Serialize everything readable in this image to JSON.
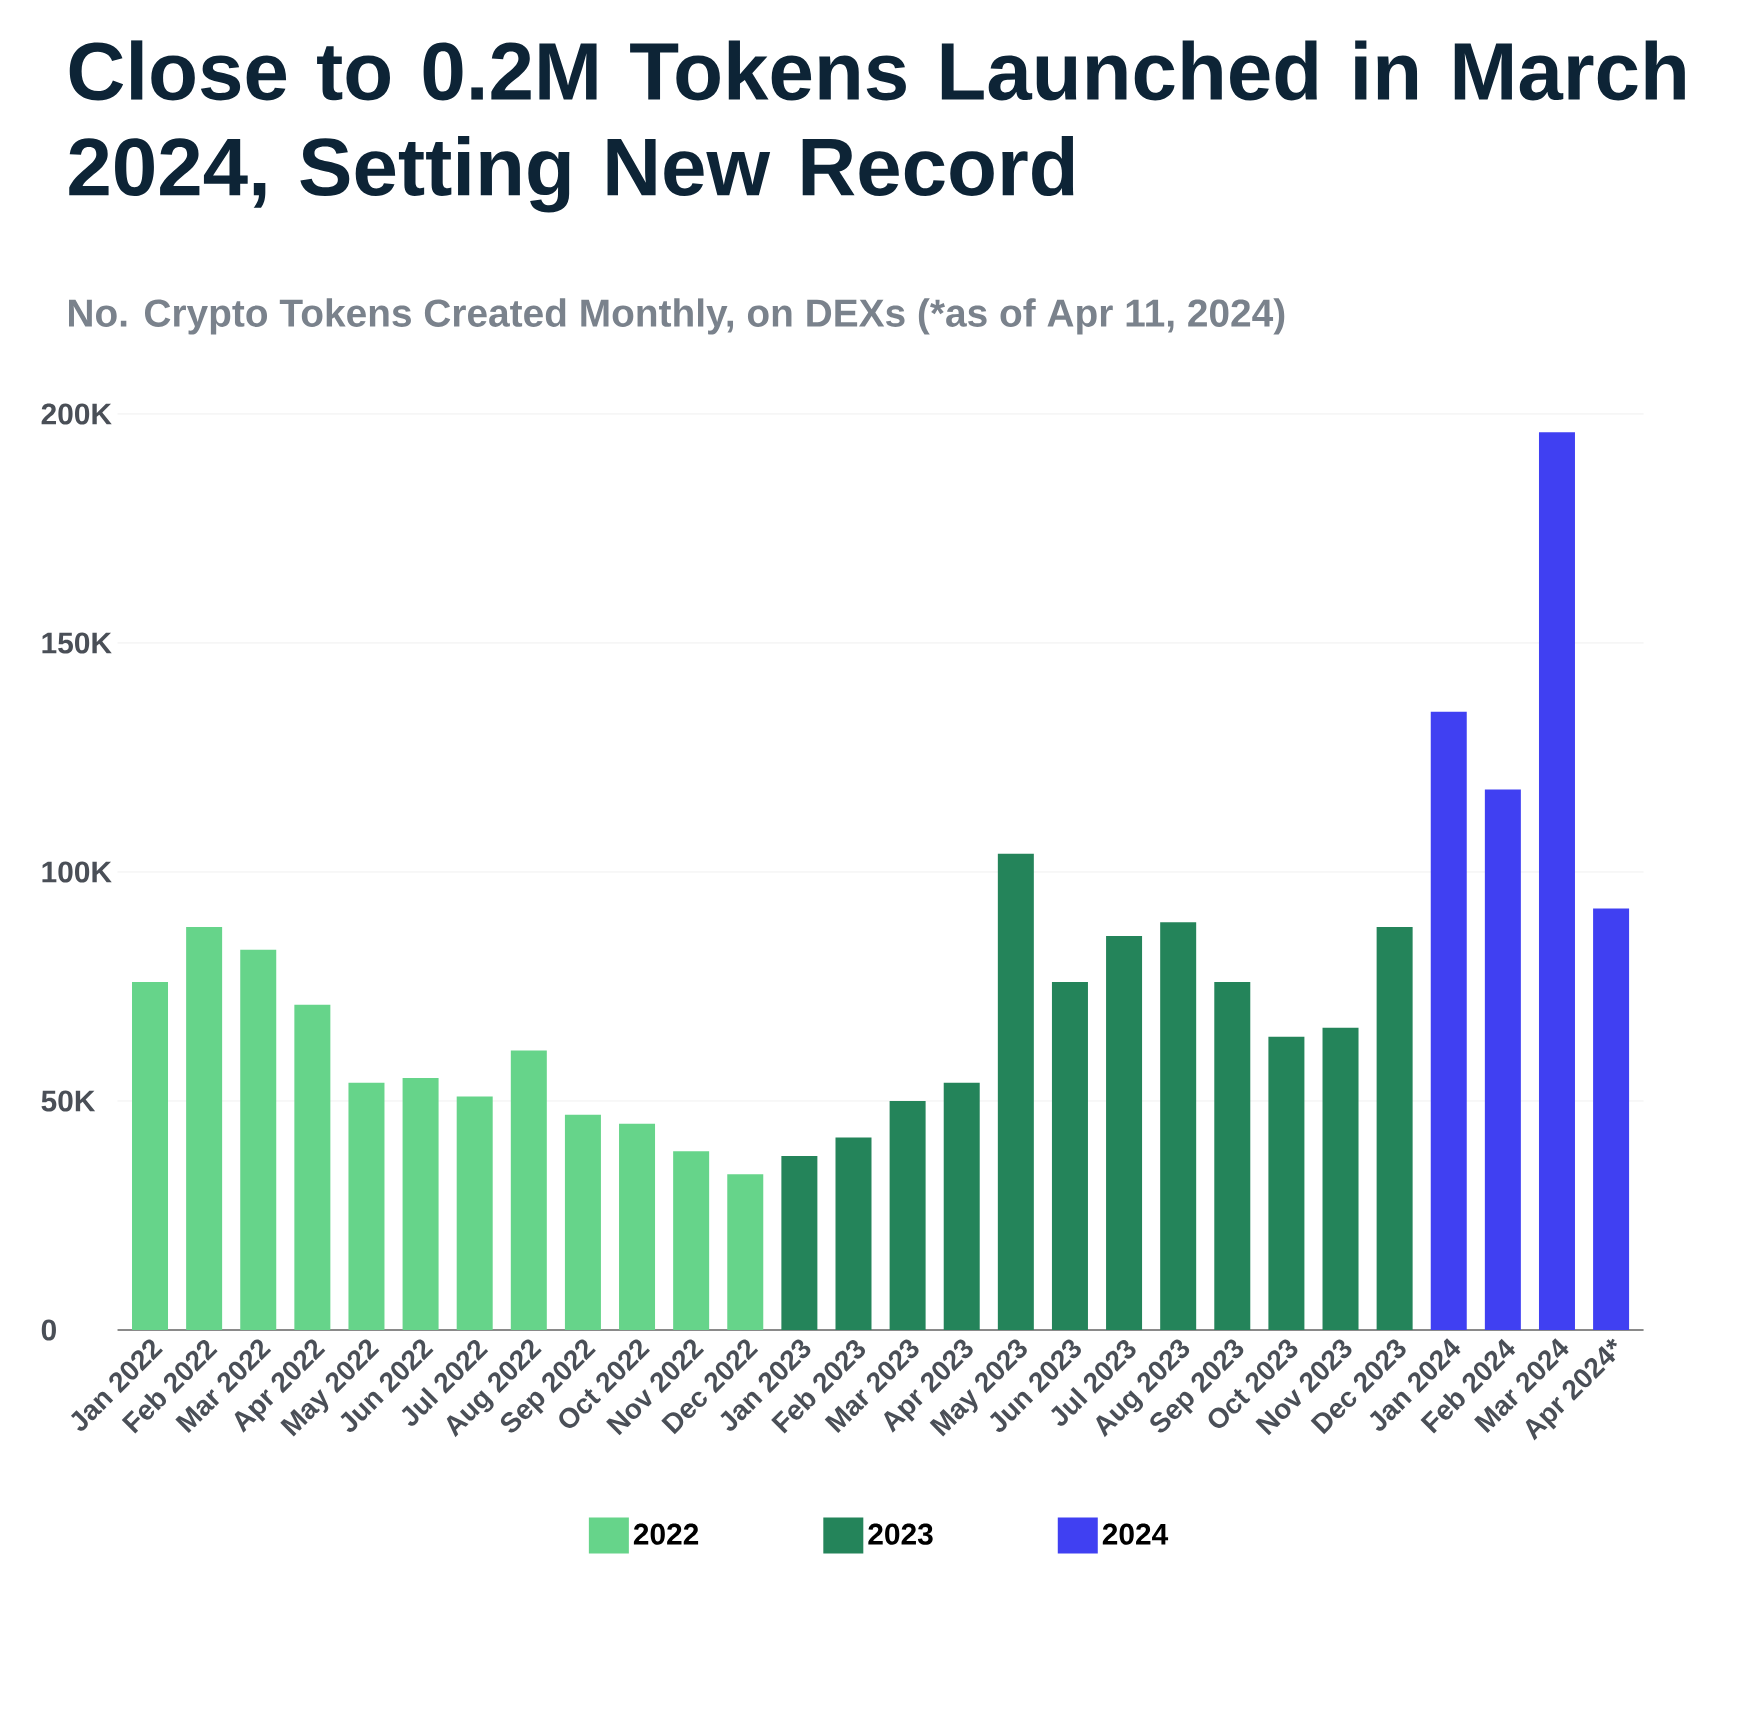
{
  "chart_data": {
    "type": "bar",
    "title": "Close to 0.2M Tokens Launched in March 2024, Setting New Record",
    "subtitle": "No. Crypto Tokens Created Monthly, on DEXs (*as of Apr 11, 2024)",
    "categories": [
      "Jan 2022",
      "Feb 2022",
      "Mar 2022",
      "Apr 2022",
      "May 2022",
      "Jun 2022",
      "Jul 2022",
      "Aug 2022",
      "Sep 2022",
      "Oct 2022",
      "Nov 2022",
      "Dec 2022",
      "Jan 2023",
      "Feb 2023",
      "Mar 2023",
      "Apr 2023",
      "May 2023",
      "Jun 2023",
      "Jul 2023",
      "Aug 2023",
      "Sep 2023",
      "Oct 2023",
      "Nov 2023",
      "Dec 2023",
      "Jan 2024",
      "Feb 2024",
      "Mar 2024",
      "Apr 2024*"
    ],
    "series": [
      {
        "name": "2022",
        "color": "#66d48a",
        "values": [
          76,
          88,
          83,
          71,
          54,
          55,
          51,
          61,
          47,
          45,
          39,
          34,
          null,
          null,
          null,
          null,
          null,
          null,
          null,
          null,
          null,
          null,
          null,
          null,
          null,
          null,
          null,
          null
        ]
      },
      {
        "name": "2023",
        "color": "#24845a",
        "values": [
          null,
          null,
          null,
          null,
          null,
          null,
          null,
          null,
          null,
          null,
          null,
          null,
          38,
          42,
          50,
          54,
          104,
          76,
          86,
          89,
          76,
          64,
          66,
          88,
          null,
          null,
          null,
          null
        ]
      },
      {
        "name": "2024",
        "color": "#4040f2",
        "values": [
          null,
          null,
          null,
          null,
          null,
          null,
          null,
          null,
          null,
          null,
          null,
          null,
          null,
          null,
          null,
          null,
          null,
          null,
          null,
          null,
          null,
          null,
          null,
          null,
          135,
          118,
          196,
          92
        ]
      }
    ],
    "ylim": [
      0,
      200
    ],
    "yticks": [
      {
        "value": 0,
        "label": "0"
      },
      {
        "value": 50,
        "label": "50K"
      },
      {
        "value": 100,
        "label": "100K"
      },
      {
        "value": 150,
        "label": "150K"
      },
      {
        "value": 200,
        "label": "200K"
      }
    ],
    "grid": "y",
    "legend": "bottom"
  }
}
